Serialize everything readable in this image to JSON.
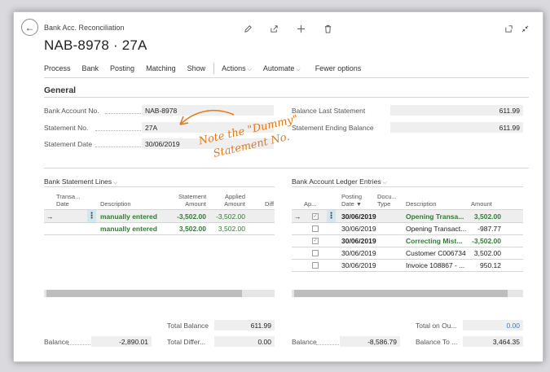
{
  "header": {
    "breadcrumb": "Bank Acc. Reconciliation",
    "title": "NAB-8978 · 27A"
  },
  "actions": [
    "Process",
    "Bank",
    "Posting",
    "Matching",
    "Show"
  ],
  "actions_dd": [
    "Actions",
    "Automate"
  ],
  "fewer_options": "Fewer options",
  "general": {
    "title": "General",
    "bank_account_label": "Bank Account No.",
    "bank_account_value": "NAB-8978",
    "statement_no_label": "Statement No.",
    "statement_no_value": "27A",
    "statement_date_label": "Statement Date",
    "statement_date_value": "30/06/2019",
    "balance_last_label": "Balance Last Statement",
    "balance_last_value": "611.99",
    "statement_ending_label": "Statement Ending Balance",
    "statement_ending_value": "611.99"
  },
  "annotation": {
    "line1": "Note the \"Dummy\"",
    "line2": "Statement No."
  },
  "left_part": {
    "title": "Bank Statement Lines",
    "col_date_1": "Transa...",
    "col_date_2": "Date",
    "col_desc": "Description",
    "col_amount_1": "Statement",
    "col_amount_2": "Amount",
    "col_applied_1": "Applied",
    "col_applied_2": "Amount",
    "col_diff": "Diff",
    "rows": [
      {
        "desc": "manually entered",
        "amount": "-3,502.00",
        "applied": "-3,502.00"
      },
      {
        "desc": "manually entered",
        "amount": "3,502.00",
        "applied": "3,502.00"
      }
    ],
    "total_balance_label": "Total Balance",
    "total_balance_value": "611.99",
    "balance_label": "Balance",
    "balance_value": "-2,890.01",
    "total_diff_label": "Total Differ...",
    "total_diff_value": "0.00"
  },
  "right_part": {
    "title": "Bank Account Ledger Entries",
    "col_ap": "Ap...",
    "col_posting_1": "Posting",
    "col_posting_2": "Date",
    "col_doc_1": "Docu...",
    "col_doc_2": "Type",
    "col_desc": "Description",
    "col_amount": "Amount",
    "rows": [
      {
        "date": "30/06/2019",
        "desc": "Opening Transa...",
        "amount": "3,502.00",
        "checked": true,
        "bold": true
      },
      {
        "date": "30/06/2019",
        "desc": "Opening Transact...",
        "amount": "-987.77",
        "checked": false,
        "bold": false
      },
      {
        "date": "30/06/2019",
        "desc": "Correcting Mist...",
        "amount": "-3,502.00",
        "checked": true,
        "bold": true
      },
      {
        "date": "30/06/2019",
        "desc": "Customer C006734",
        "amount": "3,502.00",
        "checked": false,
        "bold": false
      },
      {
        "date": "30/06/2019",
        "desc": "Invoice 108867 - ...",
        "amount": "950.12",
        "checked": false,
        "bold": false
      }
    ],
    "total_outstanding_label": "Total on Ou...",
    "total_outstanding_value": "0.00",
    "balance_label": "Balance",
    "balance_value": "-8,586.79",
    "balance_to_label": "Balance To ...",
    "balance_to_value": "3,464.35"
  },
  "colors": {
    "accent_note": "#e07a1e",
    "bold_green": "#2e7d32",
    "link_blue": "#3a7ab8"
  }
}
